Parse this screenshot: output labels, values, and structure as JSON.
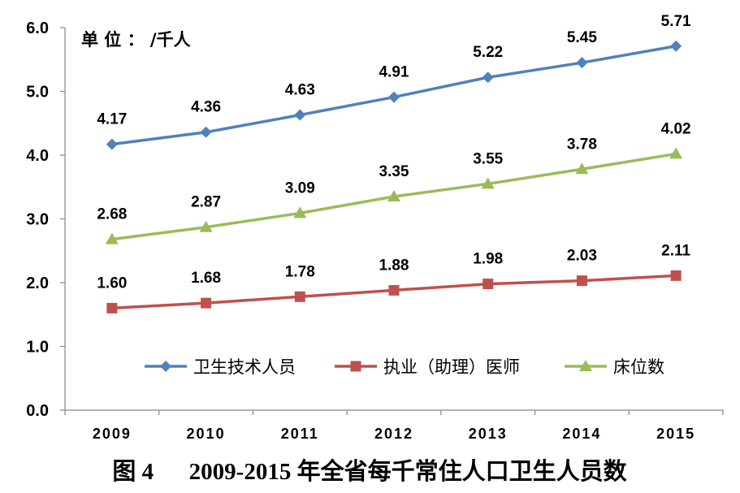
{
  "chart_data": {
    "type": "line",
    "title": "图 4      2009-2015 年全省每千常住人口卫生人员数",
    "unit_label": "单 位 ： /千人",
    "x": [
      "2009",
      "2010",
      "2011",
      "2012",
      "2013",
      "2014",
      "2015"
    ],
    "ylim": [
      0,
      6
    ],
    "yticks": [
      "0.0",
      "1.0",
      "2.0",
      "3.0",
      "4.0",
      "5.0",
      "6.0"
    ],
    "grid": false,
    "legend_position": "bottom-center",
    "series": [
      {
        "name": "卫生技术人员",
        "color": "#4f81bd",
        "marker": "diamond",
        "values": [
          4.17,
          4.36,
          4.63,
          4.91,
          5.22,
          5.45,
          5.71
        ],
        "labels": [
          "4.17",
          "4.36",
          "4.63",
          "4.91",
          "5.22",
          "5.45",
          "5.71"
        ]
      },
      {
        "name": "执业（助理）医师",
        "color": "#c0504d",
        "marker": "square",
        "values": [
          1.6,
          1.68,
          1.78,
          1.88,
          1.98,
          2.03,
          2.11
        ],
        "labels": [
          "1.60",
          "1.68",
          "1.78",
          "1.88",
          "1.98",
          "2.03",
          "2.11"
        ]
      },
      {
        "name": "床位数",
        "color": "#9bbb59",
        "marker": "triangle",
        "values": [
          2.68,
          2.87,
          3.09,
          3.35,
          3.55,
          3.78,
          4.02
        ],
        "labels": [
          "2.68",
          "2.87",
          "3.09",
          "3.35",
          "3.55",
          "3.78",
          "4.02"
        ]
      }
    ]
  }
}
